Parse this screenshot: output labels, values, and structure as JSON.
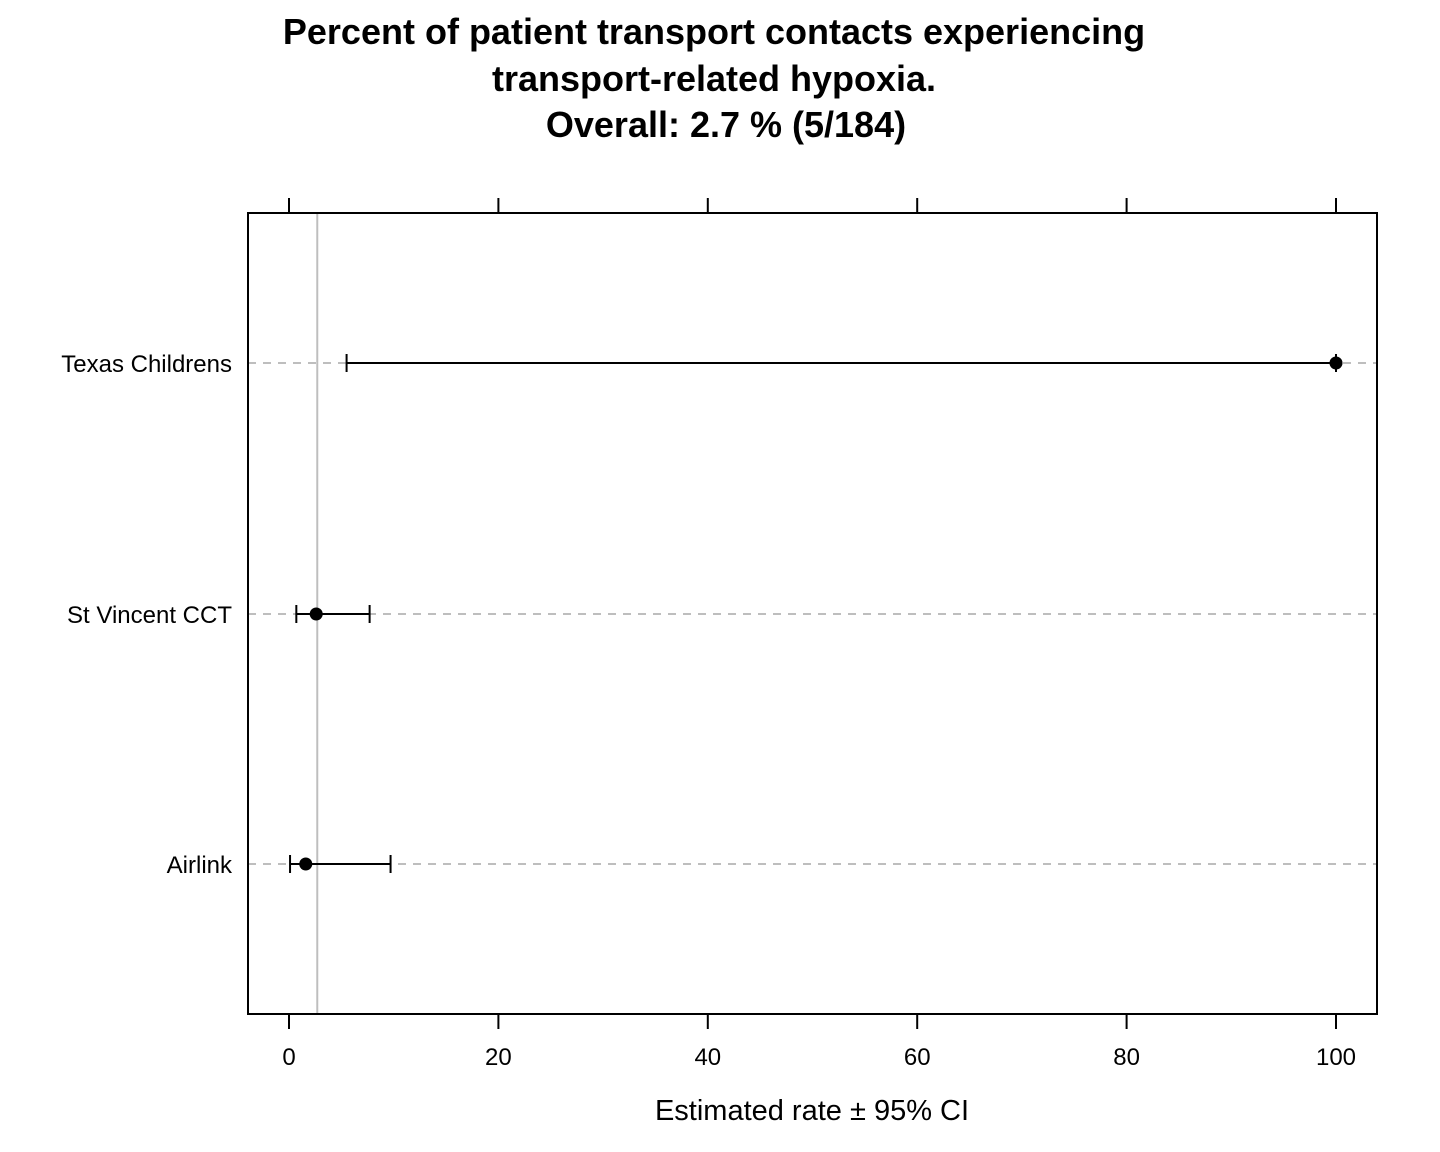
{
  "chart_data": {
    "type": "dot-errorbar",
    "title": [
      "Percent of patient transport contacts experiencing",
      "transport-related hypoxia.",
      "Overall:  2.7 %  (5/184)"
    ],
    "xlabel": "Estimated rate ±  95% CI",
    "ylabel": "",
    "xlim": [
      -4,
      104
    ],
    "x_ticks": [
      0,
      20,
      40,
      60,
      80,
      100
    ],
    "x_tick_labels": [
      "0",
      "20",
      "40",
      "60",
      "80",
      "100"
    ],
    "reference_line": 2.7,
    "categories": [
      "Texas Childrens",
      "St Vincent CCT",
      "Airlink"
    ],
    "points": [
      {
        "label": "Texas Childrens",
        "estimate": 100,
        "lower": 5.5,
        "upper": 100
      },
      {
        "label": "St Vincent CCT",
        "estimate": 2.6,
        "lower": 0.7,
        "upper": 7.7
      },
      {
        "label": "Airlink",
        "estimate": 1.6,
        "lower": 0.1,
        "upper": 9.7
      }
    ],
    "grid": "horizontal dashed",
    "legend": "none",
    "colors": {
      "points": "#000000",
      "reference_line": "#bebebe",
      "grid": "#bebebe",
      "frame": "#000000"
    }
  }
}
